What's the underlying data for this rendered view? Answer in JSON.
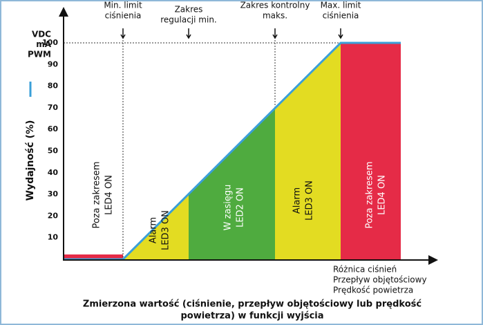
{
  "top_labels": [
    {
      "lines": [
        "Min. limit",
        "ciśnienia"
      ]
    },
    {
      "lines": [
        "Zakres",
        "regulacji min."
      ]
    },
    {
      "lines": [
        "Zakres kontrolny",
        "maks."
      ]
    },
    {
      "lines": [
        "Max. limit",
        "ciśnienia"
      ]
    }
  ],
  "y_axis": {
    "units": [
      "VDC",
      "mA",
      "PWM"
    ],
    "title": "Wydajność (%)",
    "ticks": [
      "100",
      "90",
      "80",
      "70",
      "60",
      "50",
      "40",
      "30",
      "20",
      "10"
    ]
  },
  "zones": [
    {
      "lines": [
        "Poza zakresem",
        "LED4 ON"
      ]
    },
    {
      "lines": [
        "Alarm",
        "LED3 ON"
      ]
    },
    {
      "lines": [
        "W zasięgu",
        "LED2 ON"
      ]
    },
    {
      "lines": [
        "Alarm",
        "LED3 ON"
      ]
    },
    {
      "lines": [
        "Poza zakresem",
        "LED4 ON"
      ]
    }
  ],
  "x_axis": {
    "lines": [
      "Różnica ciśnień",
      "Przepływ objętościowy",
      "Prędkość powietrza"
    ]
  },
  "caption": {
    "lines": [
      "Zmierzona wartość (ciśnienie, przepływ objętościowy lub prędkość",
      "powietrza) w funkcji wyjścia"
    ]
  }
}
